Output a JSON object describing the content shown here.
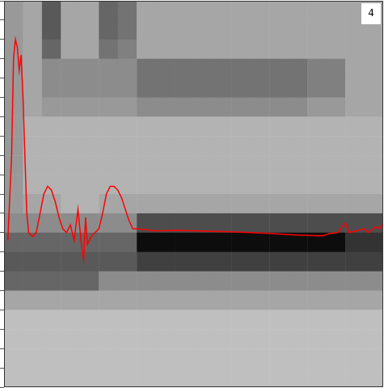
{
  "chart_data": {
    "type": "heatmap",
    "annotation": "4",
    "xlim": [
      0,
      100
    ],
    "ylim": [
      0,
      100
    ],
    "yticks": [
      0,
      5,
      10,
      15,
      20,
      25,
      30,
      35,
      40,
      45,
      50,
      55,
      60,
      65,
      70,
      75,
      80,
      85,
      90,
      95,
      100
    ],
    "tick_labels": false,
    "grid": false,
    "cells": [
      [
        0.4,
        0.35,
        0.65,
        0.35,
        0.35,
        0.6,
        0.55,
        0.35,
        0.35,
        0.35,
        0.35,
        0.35,
        0.35,
        0.35,
        0.35,
        0.35,
        0.35,
        0.35,
        0.35,
        0.35
      ],
      [
        0.4,
        0.35,
        0.65,
        0.35,
        0.35,
        0.6,
        0.55,
        0.35,
        0.35,
        0.35,
        0.35,
        0.35,
        0.35,
        0.35,
        0.35,
        0.35,
        0.35,
        0.35,
        0.35,
        0.35
      ],
      [
        0.4,
        0.35,
        0.6,
        0.35,
        0.35,
        0.55,
        0.5,
        0.35,
        0.35,
        0.35,
        0.35,
        0.35,
        0.35,
        0.35,
        0.35,
        0.35,
        0.35,
        0.35,
        0.35,
        0.35
      ],
      [
        0.4,
        0.35,
        0.45,
        0.45,
        0.45,
        0.45,
        0.45,
        0.55,
        0.55,
        0.55,
        0.55,
        0.55,
        0.55,
        0.55,
        0.55,
        0.55,
        0.5,
        0.5,
        0.35,
        0.35
      ],
      [
        0.4,
        0.35,
        0.45,
        0.45,
        0.45,
        0.45,
        0.45,
        0.55,
        0.55,
        0.55,
        0.55,
        0.55,
        0.55,
        0.55,
        0.55,
        0.55,
        0.5,
        0.5,
        0.35,
        0.35
      ],
      [
        0.4,
        0.35,
        0.4,
        0.4,
        0.4,
        0.4,
        0.4,
        0.45,
        0.45,
        0.45,
        0.45,
        0.45,
        0.45,
        0.45,
        0.45,
        0.45,
        0.4,
        0.4,
        0.35,
        0.35
      ],
      [
        0.4,
        0.3,
        0.3,
        0.3,
        0.3,
        0.3,
        0.3,
        0.3,
        0.3,
        0.3,
        0.3,
        0.3,
        0.3,
        0.3,
        0.3,
        0.3,
        0.3,
        0.3,
        0.3,
        0.3
      ],
      [
        0.4,
        0.3,
        0.3,
        0.3,
        0.3,
        0.3,
        0.3,
        0.3,
        0.3,
        0.3,
        0.3,
        0.3,
        0.3,
        0.3,
        0.3,
        0.3,
        0.3,
        0.3,
        0.3,
        0.3
      ],
      [
        0.4,
        0.3,
        0.3,
        0.3,
        0.3,
        0.3,
        0.3,
        0.3,
        0.3,
        0.3,
        0.3,
        0.3,
        0.3,
        0.3,
        0.3,
        0.3,
        0.3,
        0.3,
        0.3,
        0.3
      ],
      [
        0.4,
        0.3,
        0.3,
        0.3,
        0.3,
        0.3,
        0.3,
        0.3,
        0.3,
        0.3,
        0.3,
        0.3,
        0.3,
        0.3,
        0.3,
        0.3,
        0.3,
        0.3,
        0.3,
        0.3
      ],
      [
        0.4,
        0.35,
        0.35,
        0.3,
        0.3,
        0.35,
        0.35,
        0.35,
        0.35,
        0.35,
        0.35,
        0.35,
        0.35,
        0.35,
        0.35,
        0.35,
        0.35,
        0.35,
        0.35,
        0.35
      ],
      [
        0.45,
        0.45,
        0.45,
        0.45,
        0.45,
        0.45,
        0.45,
        0.7,
        0.7,
        0.7,
        0.7,
        0.7,
        0.7,
        0.7,
        0.7,
        0.7,
        0.7,
        0.7,
        0.7,
        0.7
      ],
      [
        0.6,
        0.6,
        0.6,
        0.6,
        0.6,
        0.6,
        0.6,
        0.95,
        0.95,
        0.95,
        0.95,
        0.95,
        0.95,
        0.95,
        0.95,
        0.95,
        0.95,
        0.95,
        0.8,
        0.8
      ],
      [
        0.65,
        0.65,
        0.65,
        0.65,
        0.65,
        0.65,
        0.65,
        0.75,
        0.75,
        0.75,
        0.75,
        0.75,
        0.75,
        0.75,
        0.75,
        0.75,
        0.75,
        0.75,
        0.75,
        0.75
      ],
      [
        0.6,
        0.6,
        0.6,
        0.6,
        0.6,
        0.45,
        0.45,
        0.45,
        0.45,
        0.45,
        0.45,
        0.45,
        0.45,
        0.45,
        0.45,
        0.45,
        0.45,
        0.45,
        0.45,
        0.45
      ],
      [
        0.35,
        0.35,
        0.35,
        0.35,
        0.35,
        0.35,
        0.35,
        0.35,
        0.35,
        0.35,
        0.35,
        0.35,
        0.35,
        0.35,
        0.35,
        0.35,
        0.35,
        0.35,
        0.35,
        0.35
      ],
      [
        0.25,
        0.25,
        0.25,
        0.25,
        0.25,
        0.25,
        0.25,
        0.25,
        0.25,
        0.25,
        0.25,
        0.25,
        0.25,
        0.25,
        0.25,
        0.25,
        0.25,
        0.25,
        0.25,
        0.25
      ],
      [
        0.25,
        0.25,
        0.25,
        0.25,
        0.25,
        0.25,
        0.25,
        0.25,
        0.25,
        0.25,
        0.25,
        0.25,
        0.25,
        0.25,
        0.25,
        0.25,
        0.25,
        0.25,
        0.25,
        0.25
      ],
      [
        0.25,
        0.25,
        0.25,
        0.25,
        0.25,
        0.25,
        0.25,
        0.25,
        0.25,
        0.25,
        0.25,
        0.25,
        0.25,
        0.25,
        0.25,
        0.25,
        0.25,
        0.25,
        0.25,
        0.25
      ],
      [
        0.25,
        0.25,
        0.25,
        0.25,
        0.25,
        0.25,
        0.25,
        0.25,
        0.25,
        0.25,
        0.25,
        0.25,
        0.25,
        0.25,
        0.25,
        0.25,
        0.25,
        0.25,
        0.25,
        0.25
      ]
    ],
    "series": [
      {
        "type": "line",
        "color": "#ff0000",
        "x": [
          1,
          2,
          2.5,
          3,
          3.5,
          4,
          4.5,
          5,
          5.5,
          6,
          6.5,
          7.5,
          8.5,
          9.5,
          10.5,
          11.5,
          12.5,
          13.5,
          14.5,
          15.5,
          16.5,
          17.5,
          18.5,
          19.5,
          20.5,
          21,
          21.5,
          22,
          23,
          24,
          25,
          26,
          27,
          28,
          29,
          30,
          31,
          32,
          33,
          34,
          35,
          40,
          45,
          50,
          55,
          60,
          65,
          70,
          75,
          80,
          84,
          86,
          88,
          90,
          91,
          93,
          95,
          96,
          98,
          99,
          100
        ],
        "values": [
          38,
          60,
          85,
          90,
          88,
          82,
          86,
          75,
          60,
          45,
          40,
          39,
          40,
          45,
          50,
          52,
          51,
          48,
          44,
          41,
          40,
          42,
          38,
          46,
          36,
          33,
          44,
          37,
          39,
          40,
          41,
          45,
          50,
          52,
          52,
          51,
          49,
          46,
          43,
          41,
          41,
          40.5,
          40.6,
          40.5,
          40.3,
          40.2,
          40,
          39.8,
          39.5,
          39.3,
          39.2,
          39.8,
          40,
          42.5,
          40,
          40.5,
          41,
          40,
          41.5,
          41,
          42.5
        ]
      }
    ]
  }
}
